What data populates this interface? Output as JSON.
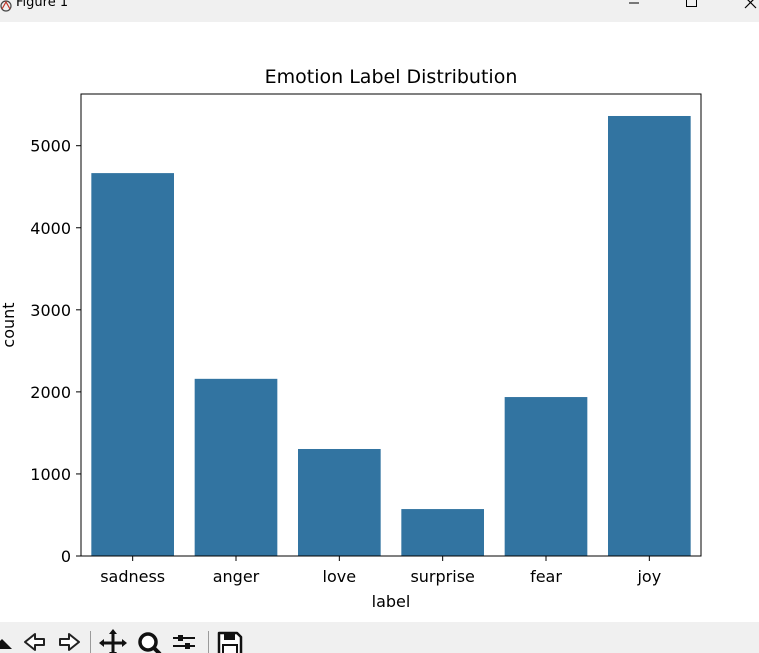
{
  "window": {
    "title": "Figure 1",
    "controls": [
      "minimize-icon",
      "maximize-icon",
      "close-icon"
    ]
  },
  "toolbar": {
    "buttons": [
      "home-icon",
      "back-icon",
      "forward-icon",
      "pan-icon",
      "zoom-icon",
      "configure-subplots-icon",
      "save-icon"
    ]
  },
  "colors": {
    "bar": "#3274a1",
    "chrome": "#f0f0f0"
  },
  "chart_data": {
    "type": "bar",
    "title": "Emotion Label Distribution",
    "xlabel": "label",
    "ylabel": "count",
    "categories": [
      "sadness",
      "anger",
      "love",
      "surprise",
      "fear",
      "joy"
    ],
    "values": [
      4666,
      2159,
      1304,
      572,
      1937,
      5362
    ],
    "ylim": [
      0,
      5630
    ],
    "yticks": [
      0,
      1000,
      2000,
      3000,
      4000,
      5000
    ],
    "grid": false
  }
}
